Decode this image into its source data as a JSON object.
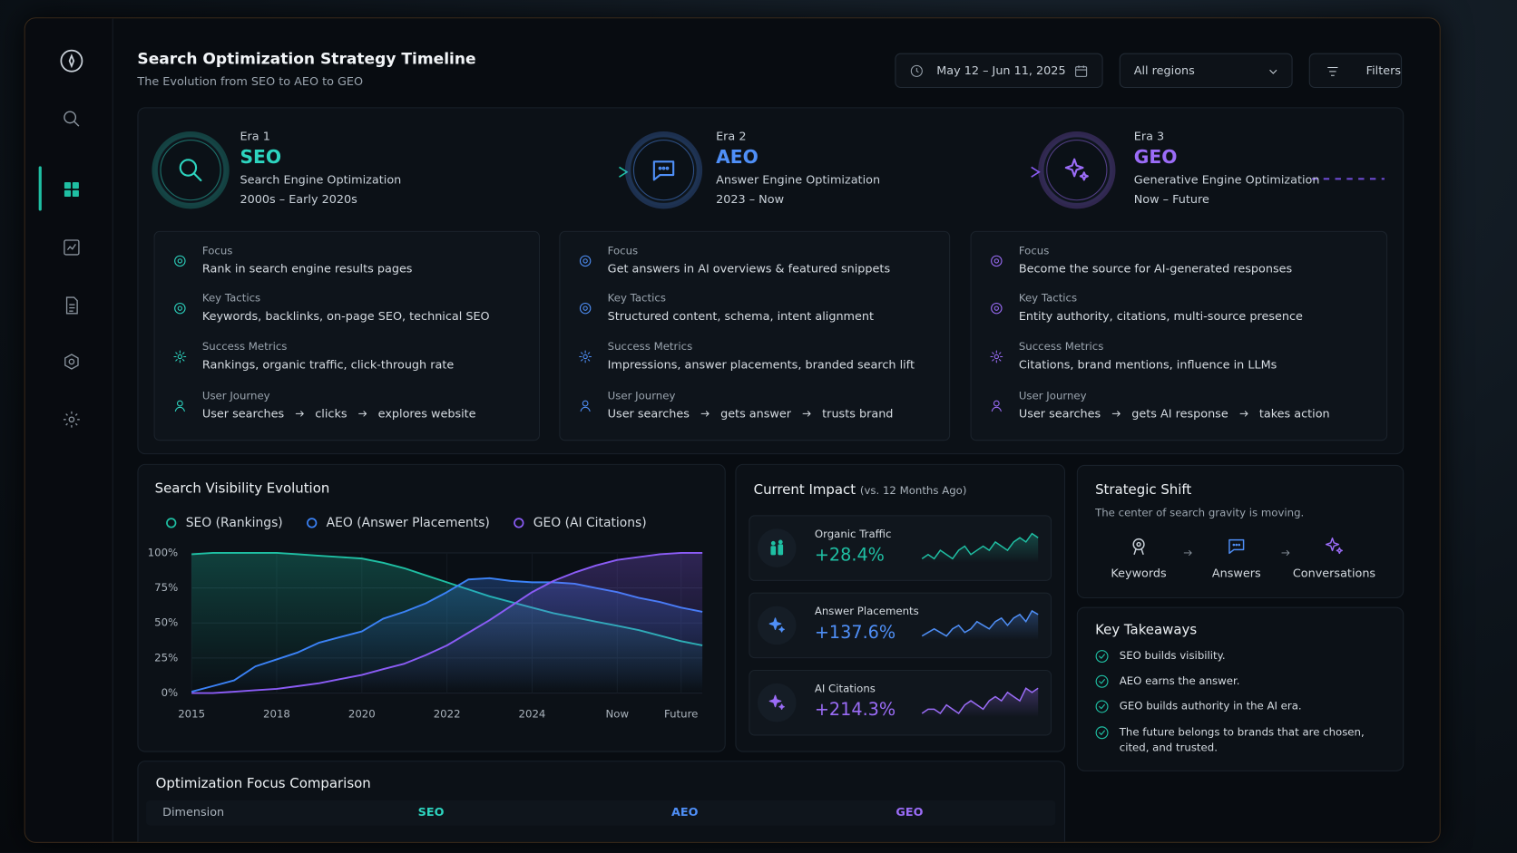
{
  "header": {
    "title": "Search Optimization Strategy Timeline",
    "subtitle": "The Evolution from SEO to AEO to GEO"
  },
  "controls": {
    "date_range": "May 12 – Jun 11, 2025",
    "region": "All regions",
    "filters": "Filters"
  },
  "eras": [
    {
      "label": "Era 1",
      "name": "SEO",
      "description": "Search Engine Optimization",
      "period": "2000s – Early 2020s",
      "details": [
        {
          "label": "Focus",
          "text": "Rank in search engine results pages"
        },
        {
          "label": "Key Tactics",
          "text": "Keywords, backlinks, on-page SEO, technical SEO"
        },
        {
          "label": "Success Metrics",
          "text": "Rankings, organic traffic, click-through rate"
        },
        {
          "label": "User Journey",
          "steps": [
            "User searches",
            "clicks",
            "explores website"
          ]
        }
      ]
    },
    {
      "label": "Era 2",
      "name": "AEO",
      "description": "Answer Engine Optimization",
      "period": "2023 – Now",
      "details": [
        {
          "label": "Focus",
          "text": "Get answers in AI overviews & featured snippets"
        },
        {
          "label": "Key Tactics",
          "text": "Structured content, schema, intent alignment"
        },
        {
          "label": "Success Metrics",
          "text": "Impressions, answer placements, branded search lift"
        },
        {
          "label": "User Journey",
          "steps": [
            "User searches",
            "gets answer",
            "trusts brand"
          ]
        }
      ]
    },
    {
      "label": "Era 3",
      "name": "GEO",
      "description": "Generative Engine Optimization",
      "period": "Now – Future",
      "details": [
        {
          "label": "Focus",
          "text": "Become the source for AI-generated responses"
        },
        {
          "label": "Key Tactics",
          "text": "Entity authority, citations, multi-source presence"
        },
        {
          "label": "Success Metrics",
          "text": "Citations, brand mentions, influence in LLMs"
        },
        {
          "label": "User Journey",
          "steps": [
            "User searches",
            "gets AI response",
            "takes action"
          ]
        }
      ]
    }
  ],
  "chart_data": {
    "type": "line",
    "title": "Search Visibility Evolution",
    "categories": [
      "2015",
      null,
      null,
      null,
      "2018",
      null,
      null,
      null,
      "2020",
      null,
      null,
      null,
      "2022",
      null,
      null,
      null,
      "2024",
      null,
      null,
      null,
      "Now",
      null,
      null,
      "Future",
      null
    ],
    "series": [
      {
        "name": "SEO (Rankings)",
        "color": "#1fbfa3",
        "values": [
          99,
          100,
          100,
          100,
          100,
          99,
          98,
          97,
          96,
          93,
          89,
          84,
          79,
          74,
          69,
          65,
          61,
          57,
          54,
          51,
          48,
          45,
          41,
          37,
          34
        ]
      },
      {
        "name": "AEO (Answer Placements)",
        "color": "#3b82f6",
        "values": [
          1,
          5,
          9,
          19,
          24,
          29,
          36,
          40,
          44,
          53,
          58,
          64,
          72,
          81,
          82,
          80,
          79,
          79,
          78,
          75,
          72,
          68,
          65,
          61,
          58
        ]
      },
      {
        "name": "GEO (AI Citations)",
        "color": "#8b5cf6",
        "values": [
          0,
          0,
          1,
          2,
          3,
          5,
          7,
          10,
          13,
          17,
          21,
          27,
          34,
          43,
          52,
          62,
          72,
          80,
          86,
          91,
          95,
          97,
          99,
          100,
          100
        ]
      }
    ],
    "ylim": [
      0,
      100
    ],
    "yticks": [
      {
        "value": 0,
        "label": "0%"
      },
      {
        "value": 25,
        "label": "25%"
      },
      {
        "value": 50,
        "label": "50%"
      },
      {
        "value": 75,
        "label": "75%"
      },
      {
        "value": 100,
        "label": "100%"
      }
    ],
    "grid": true
  },
  "impact": {
    "title": "Current Impact",
    "note": "(vs. 12 Months Ago)",
    "items": [
      {
        "label": "Organic Traffic",
        "value": "+28.4%",
        "color": "#1fbfa3",
        "trend": [
          3,
          4,
          3,
          5,
          4,
          3,
          5,
          6,
          4,
          5,
          6,
          5,
          7,
          6,
          5,
          7,
          8,
          7,
          9,
          8
        ]
      },
      {
        "label": "Answer Placements",
        "value": "+137.6%",
        "color": "#4f8ff7",
        "trend": [
          2,
          3,
          4,
          3,
          2,
          4,
          5,
          3,
          4,
          6,
          5,
          4,
          6,
          7,
          5,
          7,
          8,
          6,
          9,
          8
        ]
      },
      {
        "label": "AI Citations",
        "value": "+214.3%",
        "color": "#9b6cf7",
        "trend": [
          2,
          3,
          3,
          2,
          4,
          3,
          2,
          4,
          5,
          4,
          3,
          5,
          6,
          5,
          7,
          6,
          5,
          8,
          7,
          8
        ]
      }
    ]
  },
  "strategic_shift": {
    "title": "Strategic Shift",
    "subtitle": "The center of search gravity is moving.",
    "steps": [
      "Keywords",
      "Answers",
      "Conversations"
    ]
  },
  "key_takeaways": {
    "title": "Key Takeaways",
    "items": [
      "SEO builds visibility.",
      "AEO earns the answer.",
      "GEO builds authority in the AI era.",
      "The future belongs to brands that are chosen, cited, and trusted."
    ]
  },
  "comparison": {
    "title": "Optimization Focus Comparison",
    "columns": [
      "Dimension",
      "SEO",
      "AEO",
      "GEO"
    ]
  }
}
